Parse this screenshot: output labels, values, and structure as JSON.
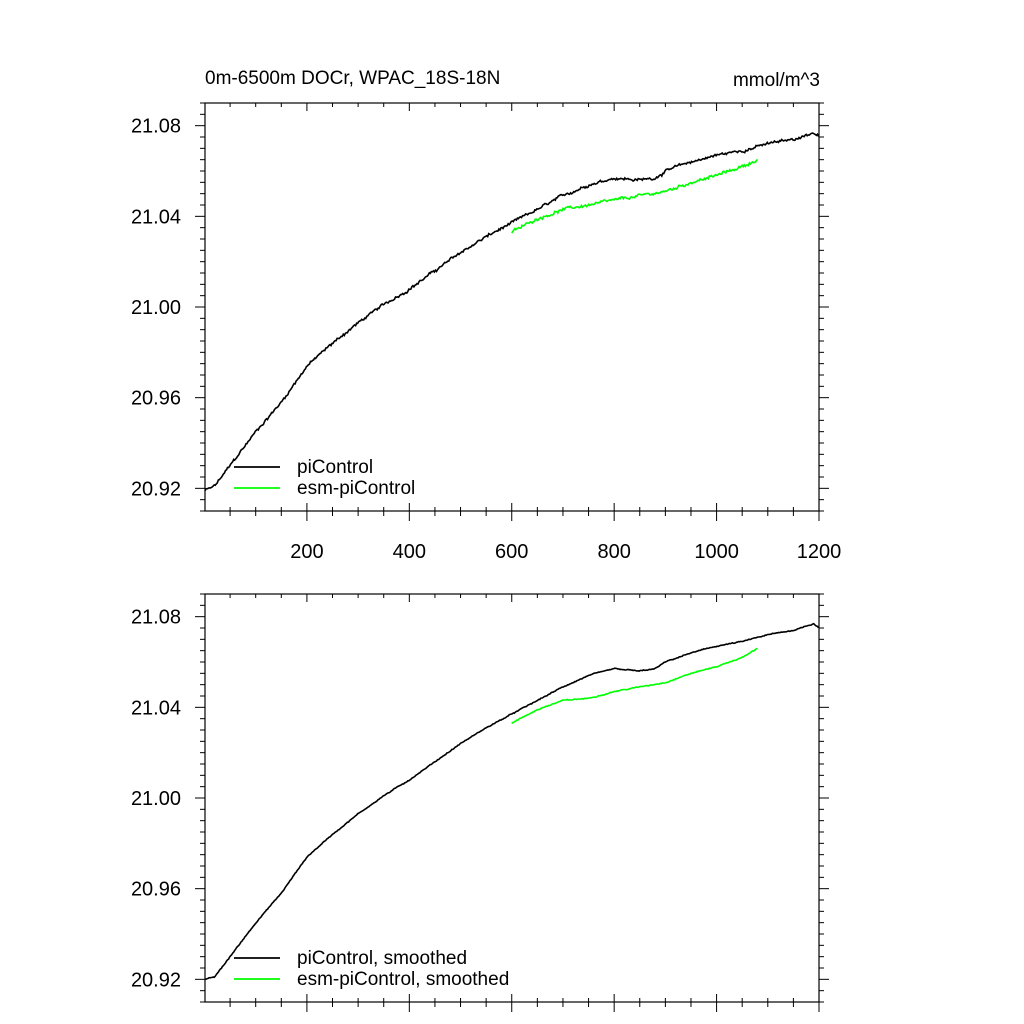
{
  "chart_data": [
    {
      "type": "line",
      "title": "0m-6500m DOCr, WPAC_18S-18N",
      "units": "mmol/m^3",
      "xlim": [
        1,
        1200
      ],
      "ylim": [
        20.91,
        21.09
      ],
      "x_ticks": [
        200,
        400,
        600,
        800,
        1000,
        1200
      ],
      "y_ticks": [
        20.92,
        20.96,
        21.0,
        21.04,
        21.08
      ],
      "y_tick_labels": [
        "20.92",
        "20.96",
        "21.00",
        "21.04",
        "21.08"
      ],
      "show_x_tick_labels": true,
      "legend_position": "bottom-left",
      "noise": 0.0009,
      "series": [
        {
          "name": "piControl",
          "color": "#000000",
          "x": [
            1,
            20,
            50,
            100,
            150,
            200,
            250,
            300,
            350,
            400,
            450,
            500,
            550,
            600,
            650,
            700,
            750,
            800,
            850,
            880,
            900,
            950,
            1000,
            1050,
            1100,
            1150,
            1190,
            1200
          ],
          "y": [
            20.919,
            20.921,
            20.93,
            20.945,
            20.958,
            20.974,
            20.984,
            20.993,
            21.001,
            21.008,
            21.016,
            21.024,
            21.031,
            21.037,
            21.043,
            21.049,
            21.054,
            21.057,
            21.056,
            21.057,
            21.06,
            21.064,
            21.067,
            21.069,
            21.072,
            21.074,
            21.077,
            21.075
          ]
        },
        {
          "name": "esm-piControl",
          "color": "#00ff00",
          "x": [
            600,
            650,
            700,
            750,
            800,
            850,
            900,
            950,
            1000,
            1050,
            1080
          ],
          "y": [
            21.033,
            21.039,
            21.043,
            21.045,
            21.047,
            21.049,
            21.051,
            21.055,
            21.058,
            21.062,
            21.065
          ]
        }
      ]
    },
    {
      "type": "line",
      "title": "",
      "units": "",
      "xlim": [
        1,
        1200
      ],
      "ylim": [
        20.91,
        21.09
      ],
      "x_ticks": [
        200,
        400,
        600,
        800,
        1000,
        1200
      ],
      "y_ticks": [
        20.92,
        20.96,
        21.0,
        21.04,
        21.08
      ],
      "y_tick_labels": [
        "20.92",
        "20.96",
        "21.00",
        "21.04",
        "21.08"
      ],
      "show_x_tick_labels": false,
      "legend_position": "bottom-left",
      "noise": 0.0003,
      "series": [
        {
          "name": "piControl, smoothed",
          "color": "#000000",
          "x": [
            1,
            20,
            50,
            100,
            150,
            200,
            250,
            300,
            350,
            400,
            450,
            500,
            550,
            600,
            650,
            700,
            750,
            800,
            850,
            880,
            900,
            950,
            1000,
            1050,
            1100,
            1150,
            1190,
            1200
          ],
          "y": [
            20.92,
            20.921,
            20.93,
            20.945,
            20.958,
            20.974,
            20.984,
            20.993,
            21.001,
            21.008,
            21.016,
            21.024,
            21.031,
            21.037,
            21.043,
            21.049,
            21.054,
            21.057,
            21.056,
            21.057,
            21.06,
            21.064,
            21.067,
            21.069,
            21.072,
            21.074,
            21.077,
            21.075
          ]
        },
        {
          "name": "esm-piControl, smoothed",
          "color": "#00ff00",
          "x": [
            600,
            650,
            700,
            750,
            800,
            850,
            900,
            950,
            1000,
            1050,
            1080
          ],
          "y": [
            21.033,
            21.039,
            21.043,
            21.044,
            21.047,
            21.049,
            21.051,
            21.055,
            21.058,
            21.062,
            21.066
          ]
        }
      ]
    }
  ]
}
